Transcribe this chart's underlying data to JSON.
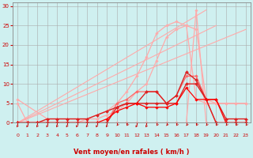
{
  "xlabel": "Vent moyen/en rafales ( km/h )",
  "xlim": [
    -0.5,
    23.5
  ],
  "ylim": [
    0,
    31
  ],
  "xticks": [
    0,
    1,
    2,
    3,
    4,
    5,
    6,
    7,
    8,
    9,
    10,
    11,
    12,
    13,
    14,
    15,
    16,
    17,
    18,
    19,
    20,
    21,
    22,
    23
  ],
  "yticks": [
    0,
    5,
    10,
    15,
    20,
    25,
    30
  ],
  "bg_color": "#cff0f0",
  "grid_color": "#aaaaaa",
  "lines": [
    {
      "color": "#ffaaaa",
      "lw": 0.9,
      "marker": "D",
      "ms": 1.8,
      "x": [
        0,
        1,
        2,
        3,
        4,
        5,
        6,
        7,
        8,
        9,
        10,
        11,
        12,
        13,
        14,
        15,
        16,
        17,
        18,
        19,
        20,
        21,
        22,
        23
      ],
      "y": [
        0,
        0,
        0,
        0,
        0,
        0,
        0,
        0,
        0,
        0,
        0,
        0,
        0,
        0,
        0,
        0,
        0,
        0,
        29,
        0,
        0,
        0,
        0,
        0
      ]
    },
    {
      "color": "#ffaaaa",
      "lw": 0.9,
      "marker": "D",
      "ms": 1.8,
      "x": [
        0,
        3,
        4,
        5,
        6,
        7,
        8,
        9,
        10,
        11,
        12,
        13,
        14,
        15,
        16,
        17,
        18,
        19,
        20,
        21,
        22,
        23
      ],
      "y": [
        6,
        1,
        1,
        1,
        1,
        1,
        1,
        2,
        3,
        5,
        8,
        10,
        16,
        22,
        24,
        25,
        24,
        6,
        5,
        5,
        5,
        5
      ]
    },
    {
      "color": "#ffaaaa",
      "lw": 0.9,
      "marker": "D",
      "ms": 1.8,
      "x": [
        0,
        1,
        2,
        3,
        4,
        5,
        6,
        7,
        8,
        9,
        10,
        11,
        12,
        13,
        14,
        15,
        16,
        17,
        18,
        19,
        20,
        21,
        22,
        23
      ],
      "y": [
        5,
        0,
        0,
        0,
        0,
        0,
        0,
        1,
        2,
        3,
        5,
        8,
        12,
        17,
        23,
        25,
        26,
        25,
        6,
        5,
        5,
        5,
        5,
        5
      ]
    },
    {
      "color": "#ff6666",
      "lw": 0.9,
      "marker": "D",
      "ms": 1.8,
      "x": [
        0,
        1,
        2,
        3,
        4,
        5,
        6,
        7,
        8,
        9,
        10,
        11,
        12,
        13,
        14,
        15,
        16,
        17,
        18,
        19,
        20,
        21,
        22,
        23
      ],
      "y": [
        0,
        0,
        0,
        0,
        0,
        0,
        0,
        0,
        0,
        0,
        5,
        6,
        8,
        8,
        8,
        5,
        7,
        12,
        12,
        6,
        0,
        0,
        0,
        0
      ]
    },
    {
      "color": "#dd2222",
      "lw": 1.0,
      "marker": "D",
      "ms": 2.0,
      "x": [
        0,
        1,
        2,
        3,
        4,
        5,
        6,
        7,
        8,
        9,
        10,
        11,
        12,
        13,
        14,
        15,
        16,
        17,
        18,
        19,
        20,
        21,
        22,
        23
      ],
      "y": [
        0,
        0,
        0,
        0,
        0,
        0,
        0,
        0,
        0,
        0,
        4,
        5,
        5,
        8,
        8,
        5,
        7,
        13,
        11,
        6,
        0,
        0,
        0,
        0
      ]
    },
    {
      "color": "#dd2222",
      "lw": 1.0,
      "marker": "D",
      "ms": 2.0,
      "x": [
        0,
        1,
        2,
        3,
        4,
        5,
        6,
        7,
        8,
        9,
        10,
        11,
        12,
        13,
        14,
        15,
        16,
        17,
        18,
        19,
        20,
        21,
        22,
        23
      ],
      "y": [
        0,
        0,
        0,
        1,
        1,
        1,
        1,
        1,
        2,
        3,
        4,
        5,
        5,
        5,
        5,
        5,
        5,
        10,
        10,
        6,
        6,
        1,
        1,
        1
      ]
    },
    {
      "color": "#ff0000",
      "lw": 0.9,
      "marker": "D",
      "ms": 1.8,
      "x": [
        0,
        1,
        2,
        3,
        4,
        5,
        6,
        7,
        8,
        9,
        10,
        11,
        12,
        13,
        14,
        15,
        16,
        17,
        18,
        19,
        20,
        21,
        22,
        23
      ],
      "y": [
        0,
        0,
        0,
        0,
        0,
        0,
        0,
        0,
        0,
        1,
        3,
        4,
        5,
        4,
        4,
        4,
        5,
        9,
        6,
        6,
        6,
        0,
        0,
        0
      ]
    }
  ],
  "straight_lines": [
    {
      "color": "#ffaaaa",
      "lw": 0.8,
      "x0": 0,
      "y0": 0,
      "x1": 19,
      "y1": 29
    },
    {
      "color": "#ffaaaa",
      "lw": 0.8,
      "x0": 0,
      "y0": 0,
      "x1": 20,
      "y1": 25
    },
    {
      "color": "#ffaaaa",
      "lw": 0.8,
      "x0": 0,
      "y0": 0,
      "x1": 23,
      "y1": 24
    }
  ],
  "arrow_color": "#cc0000",
  "arrow_angles": [
    225,
    225,
    225,
    225,
    225,
    225,
    225,
    225,
    225,
    225,
    270,
    270,
    315,
    315,
    270,
    270,
    270,
    270,
    270,
    270,
    270,
    270,
    270,
    270
  ]
}
